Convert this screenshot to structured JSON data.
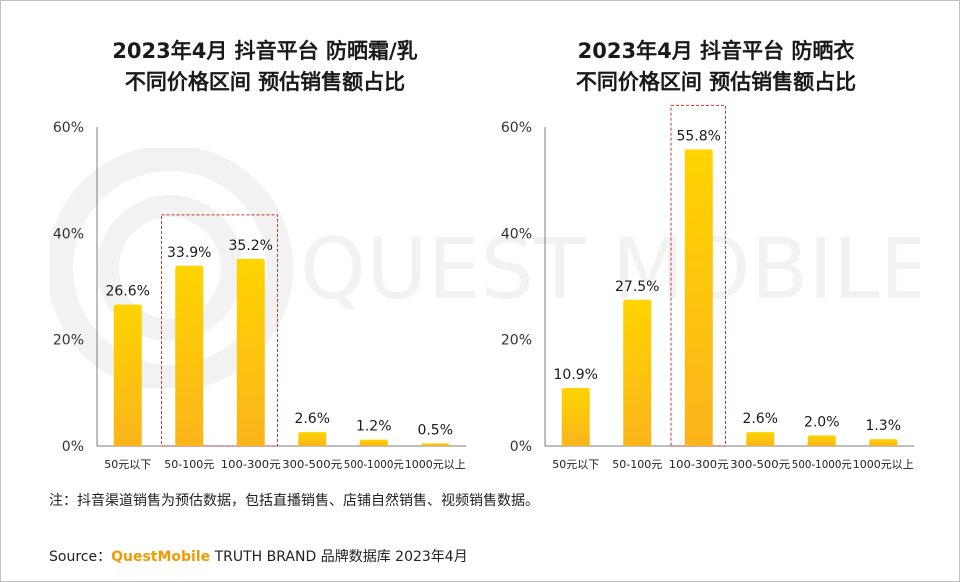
{
  "charts": [
    {
      "title_line1": "2023年4月 抖音平台 防晒霜/乳",
      "title_line2": "不同价格区间 预估销售额占比"
    },
    {
      "title_line1": "2023年4月 抖音平台 防晒衣",
      "title_line2": "不同价格区间 预估销售额占比"
    }
  ],
  "chart_data": [
    {
      "type": "bar",
      "title": "2023年4月 抖音平台 防晒霜/乳 不同价格区间 预估销售额占比",
      "categories": [
        "50元以下",
        "50-100元",
        "100-300元",
        "300-500元",
        "500-1000元",
        "1000元以上"
      ],
      "values": [
        26.6,
        33.9,
        35.2,
        2.6,
        1.2,
        0.5
      ],
      "data_labels": [
        "26.6%",
        "33.9%",
        "35.2%",
        "2.6%",
        "1.2%",
        "0.5%"
      ],
      "highlight_categories": [
        "50-100元",
        "100-300元"
      ],
      "ylim": [
        0,
        60
      ],
      "yticks": [
        "0%",
        "20%",
        "40%",
        "60%"
      ],
      "xlabel": "",
      "ylabel": "",
      "grid": false
    },
    {
      "type": "bar",
      "title": "2023年4月 抖音平台 防晒衣 不同价格区间 预估销售额占比",
      "categories": [
        "50元以下",
        "50-100元",
        "100-300元",
        "300-500元",
        "500-1000元",
        "1000元以上"
      ],
      "values": [
        10.9,
        27.5,
        55.8,
        2.6,
        2.0,
        1.3
      ],
      "data_labels": [
        "10.9%",
        "27.5%",
        "55.8%",
        "2.6%",
        "2.0%",
        "1.3%"
      ],
      "highlight_categories": [
        "100-300元"
      ],
      "ylim": [
        0,
        60
      ],
      "yticks": [
        "0%",
        "20%",
        "40%",
        "60%"
      ],
      "xlabel": "",
      "ylabel": "",
      "grid": false
    }
  ],
  "colors": {
    "bar_top": "#ffd400",
    "bar_bottom": "#fbb41c",
    "highlight_border": "#c0392b",
    "axis": "#7f7f7f",
    "brand": "#f29b00"
  },
  "watermark": "QUEST MOBILE",
  "note": "注：抖音渠道销售为预估数据，包括直播销售、店铺自然销售、视频销售数据。",
  "source": {
    "label": "Source：",
    "brand": "QuestMobile",
    "text": " TRUTH BRAND 品牌数据库 2023年4月"
  }
}
